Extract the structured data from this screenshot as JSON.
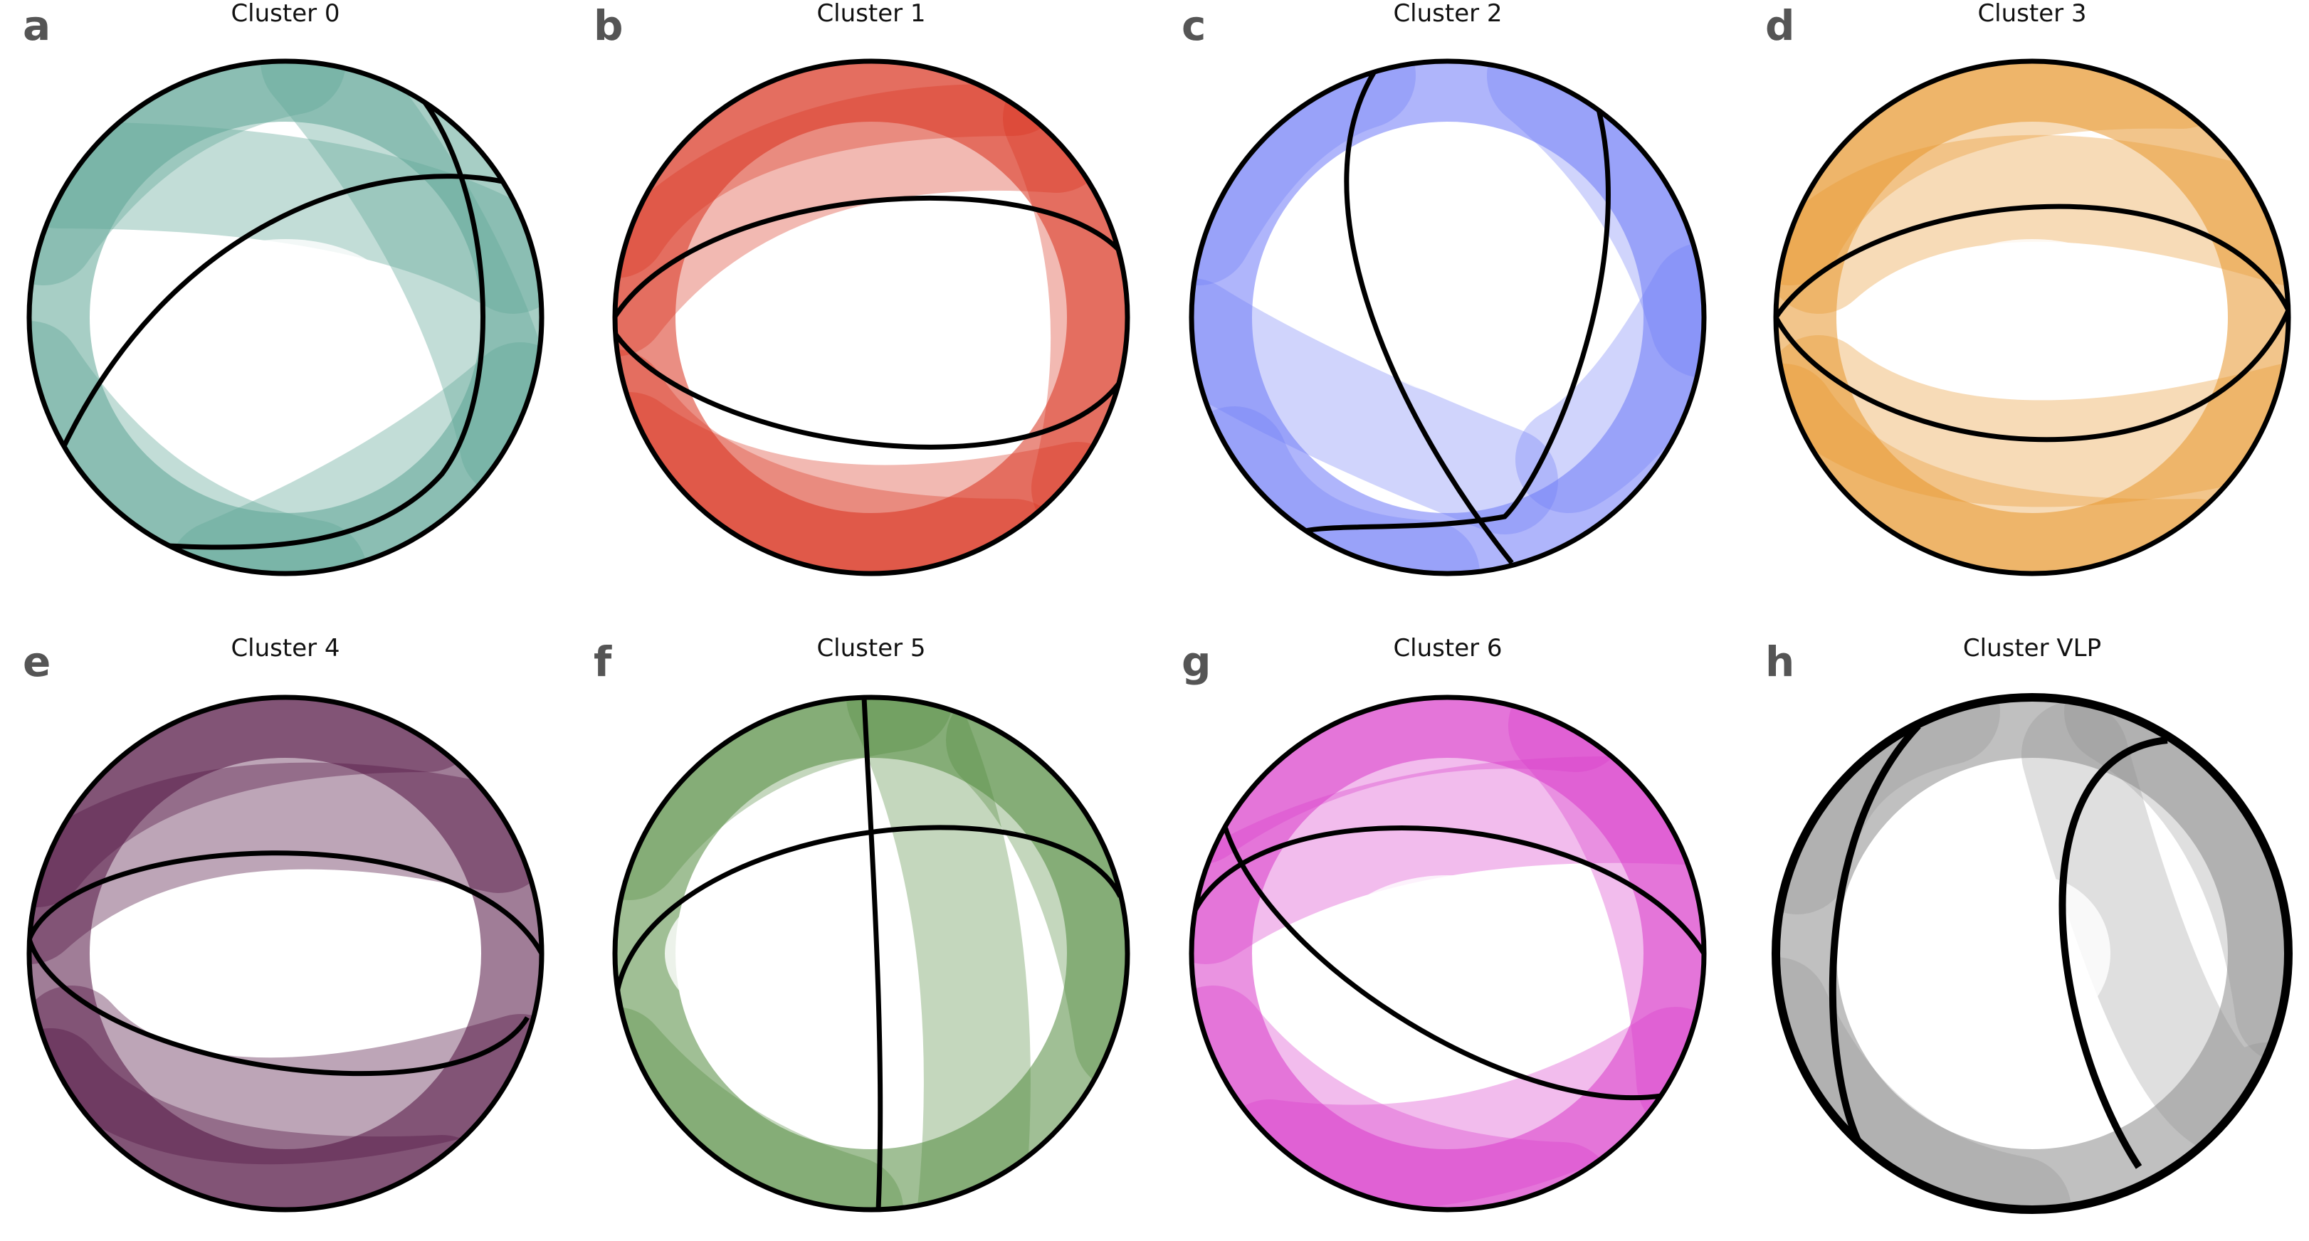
{
  "panels": [
    {
      "label": "a",
      "title": "Cluster 0",
      "color": "#5fa596",
      "style": "teal"
    },
    {
      "label": "b",
      "title": "Cluster 1",
      "color": "#d9311e",
      "style": "red"
    },
    {
      "label": "c",
      "title": "Cluster 2",
      "color": "#6e78f7",
      "style": "blue"
    },
    {
      "label": "d",
      "title": "Cluster 3",
      "color": "#e8962c",
      "style": "orange"
    },
    {
      "label": "e",
      "title": "Cluster 4",
      "color": "#521242",
      "style": "purple"
    },
    {
      "label": "f",
      "title": "Cluster 5",
      "color": "#528a3e",
      "style": "green"
    },
    {
      "label": "g",
      "title": "Cluster 6",
      "color": "#d93ac9",
      "style": "magenta"
    },
    {
      "label": "h",
      "title": "Cluster VLP",
      "color": "#8c8c8c",
      "style": "gray"
    }
  ]
}
